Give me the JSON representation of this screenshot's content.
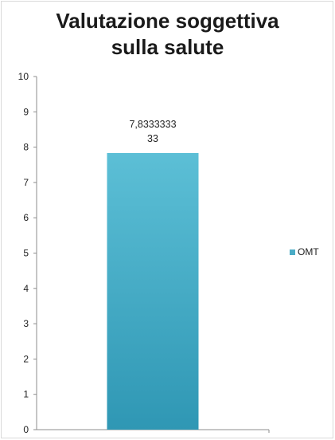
{
  "chart_data": {
    "type": "bar",
    "title_lines": [
      "Valutazione soggettiva",
      "sulla salute"
    ],
    "categories": [
      ""
    ],
    "series": [
      {
        "name": "OMT",
        "values": [
          7.833333333
        ],
        "color": "#4bacc6"
      }
    ],
    "data_label_lines": [
      "7,8333333",
      "33"
    ],
    "ylim": [
      0,
      10
    ],
    "yticks": [
      "0",
      "1",
      "2",
      "3",
      "4",
      "5",
      "6",
      "7",
      "8",
      "9",
      "10"
    ],
    "grid": false,
    "legend_position": "right"
  }
}
